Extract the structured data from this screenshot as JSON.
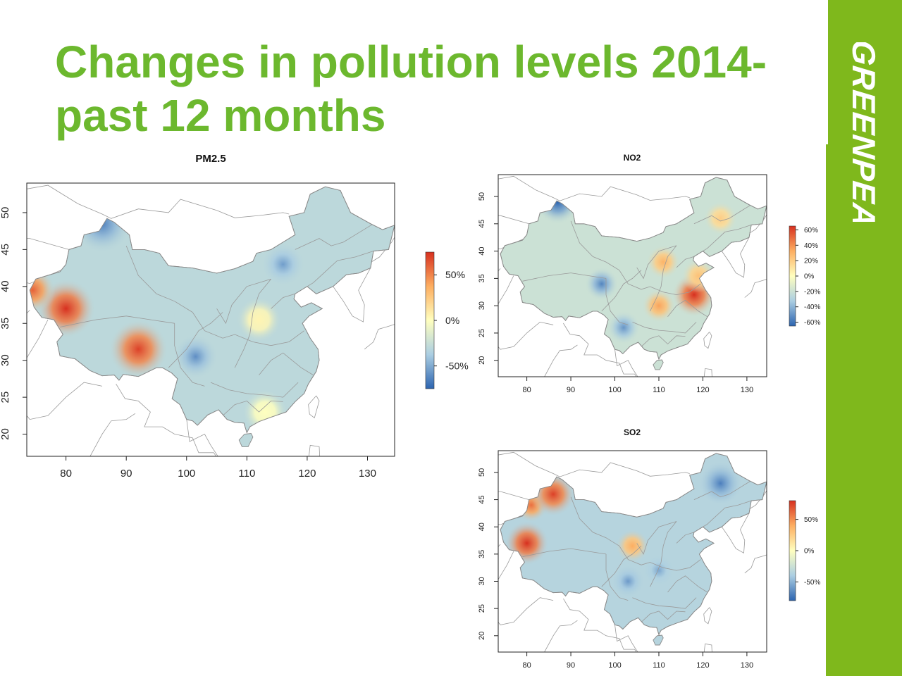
{
  "slide": {
    "title": "Changes in pollution levels 2014-past 12 months",
    "brand": "GREENPEACE",
    "colors": {
      "title": "#6cb82e",
      "brand_bar": "#7fb81c",
      "high": "#d7301f",
      "mid": "#ffffbf",
      "low": "#2c64b0"
    }
  },
  "panels": [
    {
      "id": "pm25",
      "title": "PM2.5",
      "x_ticks": [
        80,
        90,
        100,
        110,
        120,
        130
      ],
      "y_ticks": [
        20,
        25,
        30,
        35,
        40,
        45,
        50
      ],
      "legend": [
        {
          "label": "50%",
          "value": 50
        },
        {
          "label": "0%",
          "value": 0
        },
        {
          "label": "-50%",
          "value": -50
        }
      ],
      "legend_range": [
        -75,
        75
      ],
      "base_change": -30,
      "hotspots": [
        {
          "name": "western-xinjiang",
          "lon": 80,
          "lat": 37,
          "change": 75
        },
        {
          "name": "kashgar-edge",
          "lon": 74.5,
          "lat": 39.5,
          "change": 60
        },
        {
          "name": "tibet-east",
          "lon": 92,
          "lat": 31.5,
          "change": 70
        },
        {
          "name": "north-xinjiang",
          "lon": 86,
          "lat": 48.5,
          "change": -65
        },
        {
          "name": "inner-mongolia",
          "lon": 116,
          "lat": 43,
          "change": -55
        },
        {
          "name": "sichuan",
          "lon": 101.5,
          "lat": 30.5,
          "change": -60
        },
        {
          "name": "henan",
          "lon": 112,
          "lat": 35.5,
          "change": 5
        },
        {
          "name": "guangdong",
          "lon": 113,
          "lat": 23,
          "change": 0
        }
      ]
    },
    {
      "id": "no2",
      "title": "NO2",
      "x_ticks": [
        80,
        90,
        100,
        110,
        120,
        130
      ],
      "y_ticks": [
        20,
        25,
        30,
        35,
        40,
        45,
        50
      ],
      "legend": [
        {
          "label": "60%",
          "value": 60
        },
        {
          "label": "40%",
          "value": 40
        },
        {
          "label": "20%",
          "value": 20
        },
        {
          "label": "0%",
          "value": 0
        },
        {
          "label": "-20%",
          "value": -20
        },
        {
          "label": "-40%",
          "value": -40
        },
        {
          "label": "-60%",
          "value": -60
        }
      ],
      "legend_range": [
        -65,
        65
      ],
      "base_change": -20,
      "hotspots": [
        {
          "name": "jiangsu",
          "lon": 118,
          "lat": 32,
          "change": 65
        },
        {
          "name": "shanxi",
          "lon": 111,
          "lat": 38,
          "change": 30
        },
        {
          "name": "hubei",
          "lon": 110,
          "lat": 30,
          "change": 35
        },
        {
          "name": "shandong",
          "lon": 119,
          "lat": 35.5,
          "change": 25
        },
        {
          "name": "heilongjiang-east",
          "lon": 124,
          "lat": 46,
          "change": 20
        },
        {
          "name": "north-xinjiang",
          "lon": 87,
          "lat": 49,
          "change": -65
        },
        {
          "name": "qinghai",
          "lon": 97,
          "lat": 34,
          "change": -55
        },
        {
          "name": "yunnan",
          "lon": 102,
          "lat": 26,
          "change": -50
        }
      ]
    },
    {
      "id": "so2",
      "title": "SO2",
      "x_ticks": [
        80,
        90,
        100,
        110,
        120,
        130
      ],
      "y_ticks": [
        20,
        25,
        30,
        35,
        40,
        45,
        50
      ],
      "legend": [
        {
          "label": "50%",
          "value": 50
        },
        {
          "label": "0%",
          "value": 0
        },
        {
          "label": "-50%",
          "value": -50
        }
      ],
      "legend_range": [
        -80,
        80
      ],
      "base_change": -35,
      "hotspots": [
        {
          "name": "southwest-xinjiang",
          "lon": 80,
          "lat": 37,
          "change": 80
        },
        {
          "name": "northwest-xinjiang",
          "lon": 81,
          "lat": 44,
          "change": 60
        },
        {
          "name": "north-xinjiang",
          "lon": 86,
          "lat": 46,
          "change": 75
        },
        {
          "name": "heilongjiang",
          "lon": 124,
          "lat": 48,
          "change": -70
        },
        {
          "name": "sichuan",
          "lon": 103,
          "lat": 30,
          "change": -60
        },
        {
          "name": "central",
          "lon": 110,
          "lat": 32,
          "change": -55
        },
        {
          "name": "qinghai-spot",
          "lon": 104,
          "lat": 36.5,
          "change": 40
        }
      ]
    }
  ]
}
